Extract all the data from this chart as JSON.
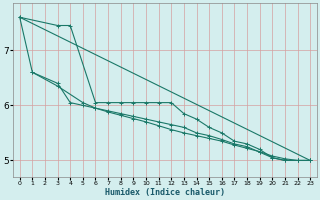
{
  "xlabel": "Humidex (Indice chaleur)",
  "xlim": [
    -0.5,
    23.5
  ],
  "ylim": [
    4.7,
    7.85
  ],
  "yticks": [
    5,
    6,
    7
  ],
  "xticks": [
    0,
    1,
    2,
    3,
    4,
    5,
    6,
    7,
    8,
    9,
    10,
    11,
    12,
    13,
    14,
    15,
    16,
    17,
    18,
    19,
    20,
    21,
    22,
    23
  ],
  "bg_color": "#d4eeee",
  "grid_color": "#d4a0a0",
  "line_color": "#1a7868",
  "lines": [
    {
      "x": [
        0,
        3,
        4,
        6,
        7,
        8,
        9,
        10,
        11,
        12,
        13,
        14,
        15,
        16,
        17,
        18,
        19,
        20,
        21,
        22,
        23
      ],
      "y": [
        7.6,
        7.45,
        7.45,
        6.05,
        6.05,
        6.05,
        6.05,
        6.05,
        6.05,
        6.05,
        5.85,
        5.75,
        5.6,
        5.5,
        5.35,
        5.3,
        5.2,
        5.05,
        5.0,
        5.0,
        5.0
      ],
      "has_markers": true
    },
    {
      "comment": "second line: x=0 y~7.6, x=1 y~6.6, x=3 y~6.4, x=4 y~6.05, then gradual decline",
      "x": [
        0,
        1,
        3,
        4,
        5,
        6,
        7,
        8,
        9,
        10,
        11,
        12,
        13,
        14,
        15,
        16,
        17,
        18,
        19,
        20,
        21,
        22,
        23
      ],
      "y": [
        7.6,
        6.6,
        6.4,
        6.05,
        6.0,
        5.95,
        5.9,
        5.85,
        5.8,
        5.75,
        5.7,
        5.65,
        5.6,
        5.5,
        5.45,
        5.38,
        5.3,
        5.25,
        5.15,
        5.05,
        5.0,
        5.0,
        5.0
      ],
      "has_markers": true
    },
    {
      "x": [
        1,
        3,
        5,
        6,
        7,
        8,
        9,
        10,
        11,
        12,
        13,
        14,
        15,
        16,
        17,
        18,
        19,
        20,
        21,
        22,
        23
      ],
      "y": [
        6.6,
        6.35,
        6.05,
        5.95,
        5.88,
        5.82,
        5.76,
        5.7,
        5.63,
        5.56,
        5.5,
        5.45,
        5.4,
        5.35,
        5.28,
        5.22,
        5.16,
        5.08,
        5.03,
        5.0,
        5.0
      ],
      "has_markers": true
    },
    {
      "comment": "straight diagonal from 0,7.6 to 23,5.0",
      "x": [
        0,
        23
      ],
      "y": [
        7.6,
        5.0
      ],
      "has_markers": false
    }
  ],
  "marker": "+",
  "marker_size": 3,
  "linewidth": 0.8
}
